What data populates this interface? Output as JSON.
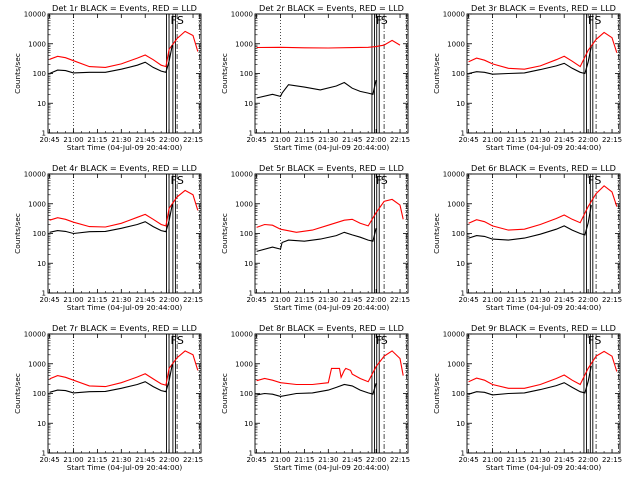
{
  "chart_data": [
    {
      "type": "line",
      "title": "Det 1r BLACK = Events, RED = LLD",
      "xlabel": "Start Time (04-Jul-09 20:44:00)",
      "ylabel": "Counts/sec",
      "yscale": "log",
      "ylim": [
        1,
        10000
      ],
      "x_tick_labels": [
        "20:45",
        "21:00",
        "21:15",
        "21:30",
        "21:45",
        "22:00",
        "22:15"
      ],
      "y_tick_labels": [
        "1",
        "10",
        "100",
        "1000",
        "10000"
      ],
      "markers": [
        {
          "time": "21:59",
          "label": "F"
        },
        {
          "time": "22:03",
          "label": "S"
        }
      ],
      "series": [
        {
          "color": "#ff0000",
          "x": [
            "20:45",
            "20:50",
            "20:55",
            "21:00",
            "21:10",
            "21:20",
            "21:30",
            "21:40",
            "21:45",
            "21:50",
            "21:55",
            "21:58",
            "22:00",
            "22:05",
            "22:10",
            "22:15",
            "22:18"
          ],
          "y": [
            300,
            380,
            340,
            270,
            170,
            160,
            210,
            330,
            420,
            290,
            190,
            170,
            650,
            1500,
            2600,
            1900,
            550
          ]
        },
        {
          "color": "#000000",
          "x": [
            "20:45",
            "20:50",
            "20:55",
            "21:00",
            "21:10",
            "21:20",
            "21:30",
            "21:40",
            "21:45",
            "21:50",
            "21:55",
            "21:58",
            "22:00",
            "22:02"
          ],
          "y": [
            100,
            130,
            125,
            105,
            110,
            110,
            140,
            190,
            240,
            160,
            120,
            110,
            260,
            900
          ]
        }
      ]
    },
    {
      "type": "line",
      "title": "Det 2r BLACK = Events, RED = LLD",
      "xlabel": "Start Time (04-Jul-09 20:44:00)",
      "ylabel": "Counts/sec",
      "yscale": "log",
      "ylim": [
        1,
        10000
      ],
      "x_tick_labels": [
        "20:45",
        "21:00",
        "21:15",
        "21:30",
        "21:45",
        "22:00",
        "22:15"
      ],
      "y_tick_labels": [
        "1",
        "10",
        "100",
        "1000",
        "10000"
      ],
      "markers": [
        {
          "time": "21:58",
          "label": "F"
        },
        {
          "time": "22:01",
          "label": "S"
        }
      ],
      "series": [
        {
          "color": "#ff0000",
          "x": [
            "20:45",
            "21:00",
            "21:15",
            "21:30",
            "21:45",
            "21:55",
            "22:00",
            "22:05",
            "22:10",
            "22:15"
          ],
          "y": [
            750,
            760,
            730,
            720,
            740,
            760,
            800,
            900,
            1300,
            900
          ]
        },
        {
          "color": "#000000",
          "x": [
            "20:45",
            "20:55",
            "21:00",
            "21:01",
            "21:05",
            "21:15",
            "21:25",
            "21:35",
            "21:40",
            "21:45",
            "21:50",
            "21:55",
            "21:58",
            "22:00"
          ],
          "y": [
            15,
            20,
            17,
            22,
            42,
            35,
            28,
            38,
            50,
            32,
            25,
            22,
            20,
            60
          ]
        }
      ]
    },
    {
      "type": "line",
      "title": "Det 3r BLACK = Events, RED = LLD",
      "xlabel": "Start Time (04-Jul-09 20:44:00)",
      "ylabel": "Counts/sec",
      "yscale": "log",
      "ylim": [
        1,
        10000
      ],
      "x_tick_labels": [
        "20:45",
        "21:00",
        "21:15",
        "21:30",
        "21:45",
        "22:00",
        "22:15"
      ],
      "y_tick_labels": [
        "1",
        "10",
        "100",
        "1000",
        "10000"
      ],
      "markers": [
        {
          "time": "21:58",
          "label": "F"
        },
        {
          "time": "22:02",
          "label": "S"
        }
      ],
      "series": [
        {
          "color": "#ff0000",
          "x": [
            "20:45",
            "20:50",
            "20:55",
            "21:00",
            "21:10",
            "21:20",
            "21:30",
            "21:40",
            "21:45",
            "21:50",
            "21:55",
            "22:00",
            "22:05",
            "22:10",
            "22:15",
            "22:18"
          ],
          "y": [
            250,
            330,
            280,
            210,
            150,
            140,
            180,
            290,
            380,
            260,
            170,
            600,
            1400,
            2400,
            1600,
            500
          ]
        },
        {
          "color": "#000000",
          "x": [
            "20:45",
            "20:50",
            "20:55",
            "21:00",
            "21:10",
            "21:20",
            "21:30",
            "21:40",
            "21:45",
            "21:50",
            "21:55",
            "21:58",
            "22:00",
            "22:02"
          ],
          "y": [
            100,
            115,
            110,
            95,
            100,
            105,
            135,
            180,
            220,
            150,
            110,
            100,
            240,
            800
          ]
        }
      ]
    },
    {
      "type": "line",
      "title": "Det 4r BLACK = Events, RED = LLD",
      "xlabel": "Start Time (04-Jul-09 20:44:00)",
      "ylabel": "Counts/sec",
      "yscale": "log",
      "ylim": [
        1,
        10000
      ],
      "x_tick_labels": [
        "20:45",
        "21:00",
        "21:15",
        "21:30",
        "21:45",
        "22:00",
        "22:15"
      ],
      "y_tick_labels": [
        "1",
        "10",
        "100",
        "1000",
        "10000"
      ],
      "markers": [
        {
          "time": "21:59",
          "label": "F"
        },
        {
          "time": "22:03",
          "label": "S"
        }
      ],
      "series": [
        {
          "color": "#ff0000",
          "x": [
            "20:45",
            "20:50",
            "20:55",
            "21:00",
            "21:10",
            "21:20",
            "21:30",
            "21:40",
            "21:45",
            "21:50",
            "21:55",
            "21:58",
            "22:00",
            "22:05",
            "22:10",
            "22:15",
            "22:18"
          ],
          "y": [
            280,
            340,
            300,
            240,
            170,
            165,
            220,
            350,
            440,
            300,
            200,
            180,
            700,
            1700,
            2800,
            2000,
            600
          ]
        },
        {
          "color": "#000000",
          "x": [
            "20:45",
            "20:50",
            "20:55",
            "21:00",
            "21:10",
            "21:20",
            "21:30",
            "21:40",
            "21:45",
            "21:50",
            "21:55",
            "21:58",
            "22:00",
            "22:02"
          ],
          "y": [
            110,
            125,
            118,
            100,
            115,
            118,
            150,
            200,
            250,
            170,
            125,
            115,
            270,
            950
          ]
        }
      ]
    },
    {
      "type": "line",
      "title": "Det 5r BLACK = Events, RED = LLD",
      "xlabel": "Start Time (04-Jul-09 20:44:00)",
      "ylabel": "Counts/sec",
      "yscale": "log",
      "ylim": [
        1,
        10000
      ],
      "x_tick_labels": [
        "20:45",
        "21:00",
        "21:15",
        "21:30",
        "21:45",
        "22:00",
        "22:15"
      ],
      "y_tick_labels": [
        "1",
        "10",
        "100",
        "1000",
        "10000"
      ],
      "markers": [
        {
          "time": "21:58",
          "label": "F"
        },
        {
          "time": "22:01",
          "label": "S"
        }
      ],
      "series": [
        {
          "color": "#ff0000",
          "x": [
            "20:45",
            "20:50",
            "20:55",
            "21:00",
            "21:10",
            "21:20",
            "21:30",
            "21:40",
            "21:45",
            "21:50",
            "21:55",
            "22:00",
            "22:05",
            "22:10",
            "22:15",
            "22:17"
          ],
          "y": [
            160,
            200,
            190,
            140,
            110,
            130,
            190,
            280,
            300,
            220,
            180,
            500,
            1200,
            1400,
            900,
            300
          ]
        },
        {
          "color": "#000000",
          "x": [
            "20:45",
            "20:55",
            "21:00",
            "21:01",
            "21:05",
            "21:15",
            "21:25",
            "21:35",
            "21:40",
            "21:45",
            "21:50",
            "21:55",
            "21:58",
            "22:00"
          ],
          "y": [
            25,
            35,
            30,
            50,
            60,
            55,
            65,
            85,
            110,
            90,
            75,
            60,
            55,
            150
          ]
        }
      ]
    },
    {
      "type": "line",
      "title": "Det 6r BLACK = Events, RED = LLD",
      "xlabel": "Start Time (04-Jul-09 20:44:00)",
      "ylabel": "Counts/sec",
      "yscale": "log",
      "ylim": [
        1,
        10000
      ],
      "x_tick_labels": [
        "20:45",
        "21:00",
        "21:15",
        "21:30",
        "21:45",
        "22:00",
        "22:15"
      ],
      "y_tick_labels": [
        "1",
        "10",
        "100",
        "1000",
        "10000"
      ],
      "markers": [
        {
          "time": "21:58",
          "label": "F"
        },
        {
          "time": "22:02",
          "label": "S"
        }
      ],
      "series": [
        {
          "color": "#ff0000",
          "x": [
            "20:45",
            "20:50",
            "20:55",
            "21:00",
            "21:10",
            "21:20",
            "21:30",
            "21:40",
            "21:45",
            "21:50",
            "21:55",
            "22:00",
            "22:05",
            "22:10",
            "22:15",
            "22:18"
          ],
          "y": [
            220,
            290,
            250,
            180,
            130,
            140,
            200,
            320,
            420,
            300,
            230,
            800,
            2200,
            4000,
            2500,
            800
          ]
        },
        {
          "color": "#000000",
          "x": [
            "20:45",
            "20:50",
            "20:55",
            "21:00",
            "21:10",
            "21:20",
            "21:30",
            "21:40",
            "21:45",
            "21:50",
            "21:55",
            "21:58",
            "22:00",
            "22:02"
          ],
          "y": [
            70,
            85,
            80,
            65,
            60,
            70,
            95,
            140,
            180,
            130,
            100,
            90,
            220,
            900
          ]
        }
      ]
    },
    {
      "type": "line",
      "title": "Det 7r BLACK = Events, RED = LLD",
      "xlabel": "Start Time (04-Jul-09 20:44:00)",
      "ylabel": "Counts/sec",
      "yscale": "log",
      "ylim": [
        1,
        10000
      ],
      "x_tick_labels": [
        "20:45",
        "21:00",
        "21:15",
        "21:30",
        "21:45",
        "22:00",
        "22:15"
      ],
      "y_tick_labels": [
        "1",
        "10",
        "100",
        "1000",
        "10000"
      ],
      "markers": [
        {
          "time": "21:59",
          "label": "F"
        },
        {
          "time": "22:03",
          "label": "S"
        }
      ],
      "series": [
        {
          "color": "#ff0000",
          "x": [
            "20:45",
            "20:50",
            "20:55",
            "21:00",
            "21:10",
            "21:20",
            "21:30",
            "21:40",
            "21:45",
            "21:50",
            "21:55",
            "21:58",
            "22:00",
            "22:05",
            "22:10",
            "22:15",
            "22:18"
          ],
          "y": [
            310,
            400,
            350,
            280,
            180,
            170,
            230,
            360,
            460,
            310,
            210,
            190,
            700,
            1600,
            2700,
            2000,
            600
          ]
        },
        {
          "color": "#000000",
          "x": [
            "20:45",
            "20:50",
            "20:55",
            "21:00",
            "21:10",
            "21:20",
            "21:30",
            "21:40",
            "21:45",
            "21:50",
            "21:55",
            "21:58",
            "22:00",
            "22:02"
          ],
          "y": [
            110,
            130,
            125,
            105,
            115,
            118,
            150,
            200,
            250,
            170,
            125,
            115,
            270,
            950
          ]
        }
      ]
    },
    {
      "type": "line",
      "title": "Det 8r BLACK = Events, RED = LLD",
      "xlabel": "Start Time (04-Jul-09 20:44:00)",
      "ylabel": "Counts/sec",
      "yscale": "log",
      "ylim": [
        1,
        10000
      ],
      "x_tick_labels": [
        "20:45",
        "21:00",
        "21:15",
        "21:30",
        "21:45",
        "22:00",
        "22:15"
      ],
      "y_tick_labels": [
        "1",
        "10",
        "100",
        "1000",
        "10000"
      ],
      "markers": [
        {
          "time": "21:58",
          "label": "F"
        },
        {
          "time": "22:01",
          "label": "S"
        }
      ],
      "series": [
        {
          "color": "#ff0000",
          "x": [
            "20:45",
            "20:50",
            "20:55",
            "21:00",
            "21:10",
            "21:20",
            "21:30",
            "21:32",
            "21:37",
            "21:38",
            "21:40",
            "21:41",
            "21:44",
            "21:45",
            "21:50",
            "21:55",
            "22:00",
            "22:05",
            "22:10",
            "22:15",
            "22:17"
          ],
          "y": [
            270,
            320,
            280,
            230,
            200,
            200,
            230,
            700,
            700,
            350,
            600,
            700,
            600,
            450,
            320,
            250,
            800,
            1800,
            2700,
            1500,
            400
          ]
        },
        {
          "color": "#000000",
          "x": [
            "20:45",
            "20:50",
            "20:55",
            "21:00",
            "21:10",
            "21:20",
            "21:30",
            "21:35",
            "21:40",
            "21:45",
            "21:50",
            "21:55",
            "21:58",
            "22:00"
          ],
          "y": [
            90,
            100,
            95,
            80,
            100,
            105,
            130,
            160,
            200,
            180,
            130,
            105,
            95,
            220
          ]
        }
      ]
    },
    {
      "type": "line",
      "title": "Det 9r BLACK = Events, RED = LLD",
      "xlabel": "Start Time (04-Jul-09 20:44:00)",
      "ylabel": "Counts/sec",
      "yscale": "log",
      "ylim": [
        1,
        10000
      ],
      "x_tick_labels": [
        "20:45",
        "21:00",
        "21:15",
        "21:30",
        "21:45",
        "22:00",
        "22:15"
      ],
      "y_tick_labels": [
        "1",
        "10",
        "100",
        "1000",
        "10000"
      ],
      "markers": [
        {
          "time": "21:58",
          "label": "F"
        },
        {
          "time": "22:02",
          "label": "S"
        }
      ],
      "series": [
        {
          "color": "#ff0000",
          "x": [
            "20:45",
            "20:50",
            "20:55",
            "21:00",
            "21:10",
            "21:20",
            "21:30",
            "21:40",
            "21:45",
            "21:50",
            "21:55",
            "22:00",
            "22:05",
            "22:10",
            "22:15",
            "22:18"
          ],
          "y": [
            250,
            330,
            280,
            200,
            150,
            150,
            200,
            320,
            420,
            280,
            200,
            700,
            1800,
            2600,
            1800,
            550
          ]
        },
        {
          "color": "#000000",
          "x": [
            "20:45",
            "20:50",
            "20:55",
            "21:00",
            "21:10",
            "21:20",
            "21:30",
            "21:40",
            "21:45",
            "21:50",
            "21:55",
            "21:58",
            "22:00",
            "22:02"
          ],
          "y": [
            95,
            115,
            110,
            90,
            100,
            105,
            135,
            185,
            230,
            160,
            115,
            105,
            250,
            850
          ]
        }
      ]
    }
  ]
}
